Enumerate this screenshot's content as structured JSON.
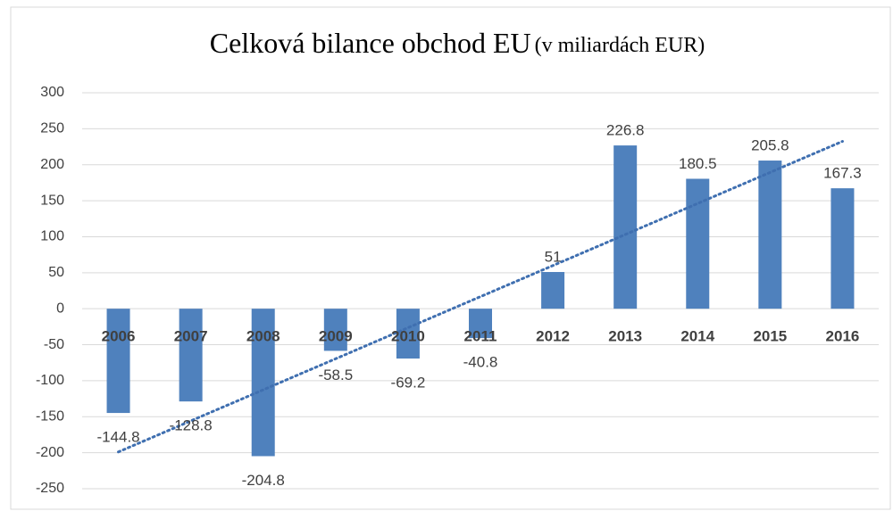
{
  "chart_data": {
    "type": "bar",
    "title": "Celková bilance obchod EU",
    "subtitle": "(v miliardách EUR)",
    "categories": [
      "2006",
      "2007",
      "2008",
      "2009",
      "2010",
      "2011",
      "2012",
      "2013",
      "2014",
      "2015",
      "2016"
    ],
    "values": [
      -144.8,
      -128.8,
      -204.8,
      -58.5,
      -69.2,
      -40.8,
      51,
      226.8,
      180.5,
      205.8,
      167.3
    ],
    "color": "#4f81bd",
    "ylim": [
      -250,
      300
    ],
    "yticks": [
      -250,
      -200,
      -150,
      -100,
      -50,
      0,
      50,
      100,
      150,
      200,
      250,
      300
    ],
    "grid": true,
    "trendline": "linear",
    "trendline_color": "#3f6fb0"
  }
}
